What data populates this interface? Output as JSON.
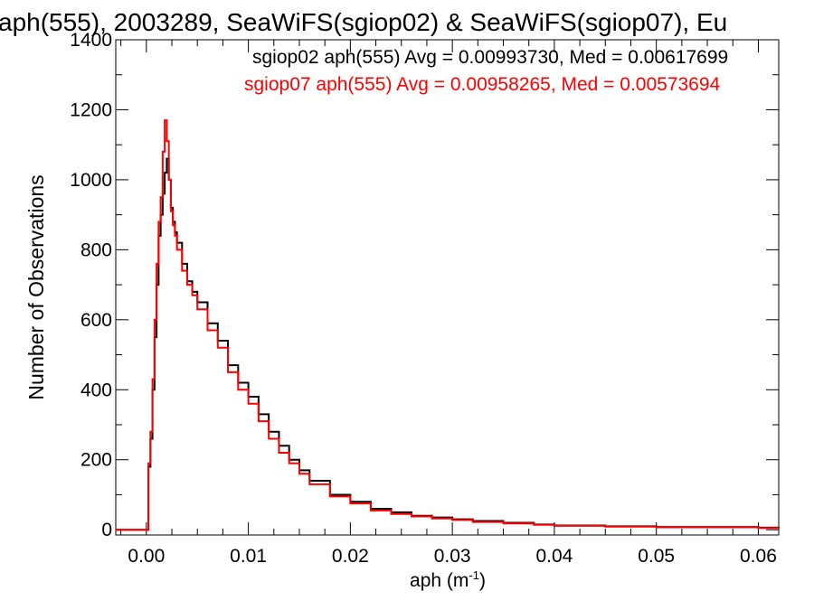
{
  "chart_data": {
    "type": "line",
    "step": true,
    "title": "aph(555), 2003289, SeaWiFS(sgiop02) & SeaWiFS(sgiop07), Eu",
    "xlabel": "aph (m",
    "xlabel_sup": "-1",
    "xlabel_close": ")",
    "ylabel": "Number of Observations",
    "xlim": [
      -0.003,
      0.062
    ],
    "ylim": [
      -15,
      1400
    ],
    "x_ticks": [
      0.0,
      0.01,
      0.02,
      0.03,
      0.04,
      0.05,
      0.06
    ],
    "x_tick_labels": [
      "0.00",
      "0.01",
      "0.02",
      "0.03",
      "0.04",
      "0.05",
      "0.06"
    ],
    "y_ticks": [
      0,
      200,
      400,
      600,
      800,
      1000,
      1200,
      1400
    ],
    "y_tick_labels": [
      "0",
      "200",
      "400",
      "600",
      "800",
      "1000",
      "1200",
      "1400"
    ],
    "grid": false,
    "legend": "top-right",
    "annotations": [
      "sgiop02 aph(555) Avg = 0.00993730, Med = 0.00617699",
      "sgiop07 aph(555) Avg = 0.00958265, Med = 0.00573694"
    ],
    "series": [
      {
        "color": "#000000",
        "x": [
          -0.003,
          0.0,
          0.0002,
          0.0004,
          0.0006,
          0.0008,
          0.001,
          0.0012,
          0.0014,
          0.0016,
          0.0018,
          0.002,
          0.0022,
          0.0024,
          0.0026,
          0.0028,
          0.003,
          0.0035,
          0.004,
          0.0045,
          0.005,
          0.006,
          0.007,
          0.008,
          0.009,
          0.01,
          0.011,
          0.012,
          0.013,
          0.014,
          0.015,
          0.016,
          0.018,
          0.02,
          0.022,
          0.024,
          0.026,
          0.028,
          0.03,
          0.032,
          0.035,
          0.038,
          0.04,
          0.045,
          0.05,
          0.055,
          0.06,
          0.062
        ],
        "y": [
          0,
          0,
          180,
          260,
          400,
          550,
          700,
          840,
          900,
          960,
          1020,
          1060,
          1000,
          920,
          880,
          850,
          820,
          760,
          710,
          680,
          650,
          590,
          540,
          470,
          420,
          380,
          330,
          280,
          240,
          200,
          170,
          140,
          100,
          80,
          60,
          50,
          40,
          35,
          30,
          25,
          20,
          15,
          12,
          10,
          8,
          8,
          6,
          5
        ]
      },
      {
        "color": "#ff0000",
        "x": [
          -0.003,
          0.0,
          0.0002,
          0.0004,
          0.0006,
          0.0008,
          0.001,
          0.0012,
          0.0014,
          0.0016,
          0.0018,
          0.002,
          0.0022,
          0.0024,
          0.0026,
          0.0028,
          0.003,
          0.0035,
          0.004,
          0.0045,
          0.005,
          0.006,
          0.007,
          0.008,
          0.009,
          0.01,
          0.011,
          0.012,
          0.013,
          0.014,
          0.015,
          0.016,
          0.018,
          0.02,
          0.022,
          0.024,
          0.026,
          0.028,
          0.03,
          0.032,
          0.035,
          0.038,
          0.04,
          0.045,
          0.05,
          0.055,
          0.06,
          0.062
        ],
        "y": [
          0,
          0,
          190,
          280,
          430,
          600,
          760,
          880,
          950,
          1080,
          1170,
          1110,
          1000,
          910,
          870,
          840,
          800,
          740,
          700,
          670,
          630,
          570,
          520,
          450,
          400,
          360,
          310,
          260,
          220,
          190,
          160,
          130,
          95,
          75,
          55,
          45,
          38,
          32,
          28,
          22,
          18,
          14,
          11,
          9,
          7,
          7,
          5,
          4
        ]
      }
    ]
  }
}
